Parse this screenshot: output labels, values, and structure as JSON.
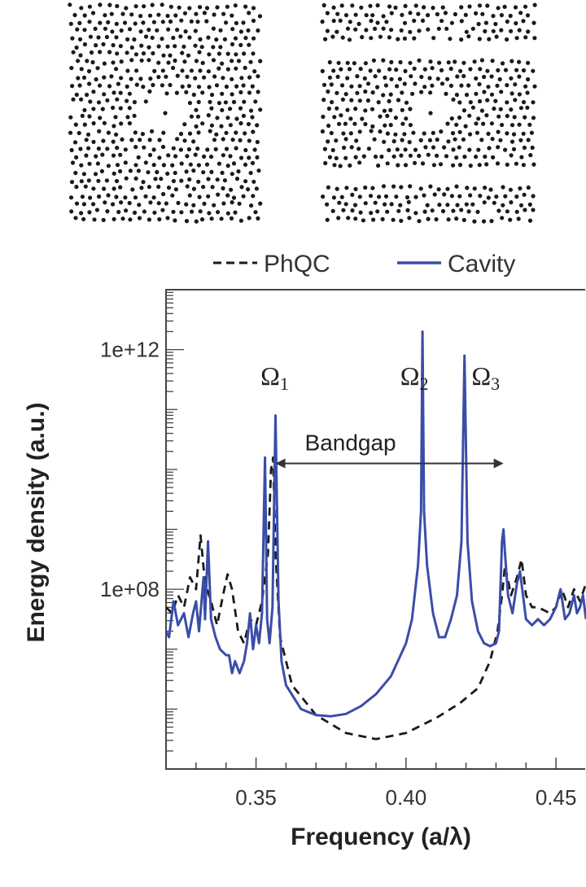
{
  "chart_data": {
    "type": "line",
    "title": "",
    "xlabel": "Frequency (a/λ)",
    "ylabel": "Energy density (a.u.)",
    "xlim": [
      0.32,
      0.46
    ],
    "ylim_log10": [
      5.0,
      13.0
    ],
    "x_ticks": [
      {
        "value": 0.35,
        "label": "0.35"
      },
      {
        "value": 0.4,
        "label": "0.40"
      },
      {
        "value": 0.45,
        "label": "0.45"
      }
    ],
    "y_ticks": [
      {
        "value": 100000000.0,
        "label": "1e+08"
      },
      {
        "value": 1000000000000.0,
        "label": "1e+12"
      }
    ],
    "legend": {
      "placement": "top",
      "entries": [
        {
          "label": "PhQC",
          "style": "dashed",
          "color": "#1a1a1a"
        },
        {
          "label": "Cavity",
          "style": "solid",
          "color": "#3a4da8"
        }
      ]
    },
    "annotations": [
      {
        "symbol": "Ω",
        "sub": "1",
        "x": 0.3565
      },
      {
        "symbol": "Ω",
        "sub": "2",
        "x": 0.4055
      },
      {
        "symbol": "Ω",
        "sub": "3",
        "x": 0.4195
      }
    ],
    "bandgap": {
      "label": "Bandgap",
      "x_start": 0.3565,
      "x_end": 0.4325,
      "y_log10": 10.1
    },
    "series": [
      {
        "name": "PhQC",
        "style": "dashed",
        "color": "#1a1a1a",
        "points": [
          [
            0.32,
            7.7
          ],
          [
            0.322,
            7.6
          ],
          [
            0.324,
            7.9
          ],
          [
            0.326,
            7.7
          ],
          [
            0.328,
            8.2
          ],
          [
            0.33,
            8.0
          ],
          [
            0.3315,
            8.9
          ],
          [
            0.333,
            8.1
          ],
          [
            0.335,
            7.8
          ],
          [
            0.337,
            7.4
          ],
          [
            0.339,
            7.9
          ],
          [
            0.3405,
            8.25
          ],
          [
            0.342,
            8.0
          ],
          [
            0.344,
            7.3
          ],
          [
            0.346,
            7.1
          ],
          [
            0.348,
            7.5
          ],
          [
            0.35,
            7.4
          ],
          [
            0.352,
            7.8
          ],
          [
            0.354,
            8.6
          ],
          [
            0.355,
            10.0
          ],
          [
            0.3557,
            10.2
          ],
          [
            0.3565,
            8.6
          ],
          [
            0.358,
            7.2
          ],
          [
            0.362,
            6.4
          ],
          [
            0.37,
            5.9
          ],
          [
            0.38,
            5.6
          ],
          [
            0.39,
            5.5
          ],
          [
            0.4,
            5.6
          ],
          [
            0.41,
            5.85
          ],
          [
            0.418,
            6.1
          ],
          [
            0.424,
            6.35
          ],
          [
            0.428,
            6.8
          ],
          [
            0.4305,
            7.3
          ],
          [
            0.432,
            7.9
          ],
          [
            0.433,
            8.4
          ],
          [
            0.435,
            7.9
          ],
          [
            0.437,
            8.2
          ],
          [
            0.4385,
            8.5
          ],
          [
            0.44,
            7.9
          ],
          [
            0.442,
            7.7
          ],
          [
            0.444,
            7.7
          ],
          [
            0.446,
            7.65
          ],
          [
            0.448,
            7.6
          ],
          [
            0.45,
            7.7
          ],
          [
            0.452,
            8.0
          ],
          [
            0.454,
            7.7
          ],
          [
            0.456,
            8.0
          ],
          [
            0.458,
            7.8
          ],
          [
            0.46,
            8.1
          ]
        ]
      },
      {
        "name": "Cavity",
        "style": "solid",
        "color": "#3a4da8",
        "points": [
          [
            0.32,
            7.3
          ],
          [
            0.321,
            7.2
          ],
          [
            0.3225,
            7.8
          ],
          [
            0.324,
            7.4
          ],
          [
            0.326,
            7.6
          ],
          [
            0.3275,
            7.2
          ],
          [
            0.329,
            7.6
          ],
          [
            0.33,
            7.8
          ],
          [
            0.331,
            7.3
          ],
          [
            0.3325,
            8.2
          ],
          [
            0.333,
            7.5
          ],
          [
            0.334,
            8.8
          ],
          [
            0.335,
            7.5
          ],
          [
            0.3365,
            7.2
          ],
          [
            0.338,
            7.0
          ],
          [
            0.34,
            6.9
          ],
          [
            0.341,
            6.9
          ],
          [
            0.342,
            6.6
          ],
          [
            0.343,
            6.8
          ],
          [
            0.3445,
            6.6
          ],
          [
            0.346,
            6.8
          ],
          [
            0.347,
            7.1
          ],
          [
            0.348,
            7.6
          ],
          [
            0.349,
            7.0
          ],
          [
            0.35,
            7.4
          ],
          [
            0.351,
            7.1
          ],
          [
            0.352,
            7.6
          ],
          [
            0.353,
            10.2
          ],
          [
            0.3537,
            7.5
          ],
          [
            0.3545,
            7.1
          ],
          [
            0.3555,
            7.7
          ],
          [
            0.3565,
            10.9
          ],
          [
            0.3575,
            7.8
          ],
          [
            0.3585,
            6.8
          ],
          [
            0.36,
            6.4
          ],
          [
            0.365,
            6.0
          ],
          [
            0.37,
            5.9
          ],
          [
            0.375,
            5.88
          ],
          [
            0.38,
            5.92
          ],
          [
            0.385,
            6.05
          ],
          [
            0.39,
            6.25
          ],
          [
            0.395,
            6.55
          ],
          [
            0.4,
            7.1
          ],
          [
            0.402,
            7.5
          ],
          [
            0.404,
            8.4
          ],
          [
            0.405,
            9.3
          ],
          [
            0.4055,
            12.3
          ],
          [
            0.406,
            9.3
          ],
          [
            0.407,
            8.4
          ],
          [
            0.409,
            7.6
          ],
          [
            0.411,
            7.2
          ],
          [
            0.413,
            7.2
          ],
          [
            0.415,
            7.5
          ],
          [
            0.417,
            7.9
          ],
          [
            0.4185,
            8.8
          ],
          [
            0.4195,
            11.9
          ],
          [
            0.4205,
            8.8
          ],
          [
            0.422,
            7.8
          ],
          [
            0.424,
            7.3
          ],
          [
            0.426,
            7.1
          ],
          [
            0.428,
            7.05
          ],
          [
            0.43,
            7.1
          ],
          [
            0.431,
            7.3
          ],
          [
            0.432,
            8.8
          ],
          [
            0.4325,
            9.0
          ],
          [
            0.433,
            8.6
          ],
          [
            0.434,
            7.9
          ],
          [
            0.4355,
            7.6
          ],
          [
            0.437,
            8.1
          ],
          [
            0.438,
            8.3
          ],
          [
            0.439,
            7.9
          ],
          [
            0.44,
            7.5
          ],
          [
            0.442,
            7.4
          ],
          [
            0.444,
            7.5
          ],
          [
            0.446,
            7.4
          ],
          [
            0.448,
            7.5
          ],
          [
            0.45,
            7.7
          ],
          [
            0.4515,
            8.0
          ],
          [
            0.453,
            7.5
          ],
          [
            0.4545,
            7.6
          ],
          [
            0.456,
            7.9
          ],
          [
            0.457,
            7.6
          ],
          [
            0.458,
            7.7
          ],
          [
            0.459,
            7.9
          ],
          [
            0.46,
            7.5
          ]
        ]
      }
    ]
  },
  "lattices": [
    {
      "name": "photonic-quasicrystal-cavity"
    },
    {
      "name": "photonic-quasicrystal-waveguide-cavity"
    }
  ]
}
